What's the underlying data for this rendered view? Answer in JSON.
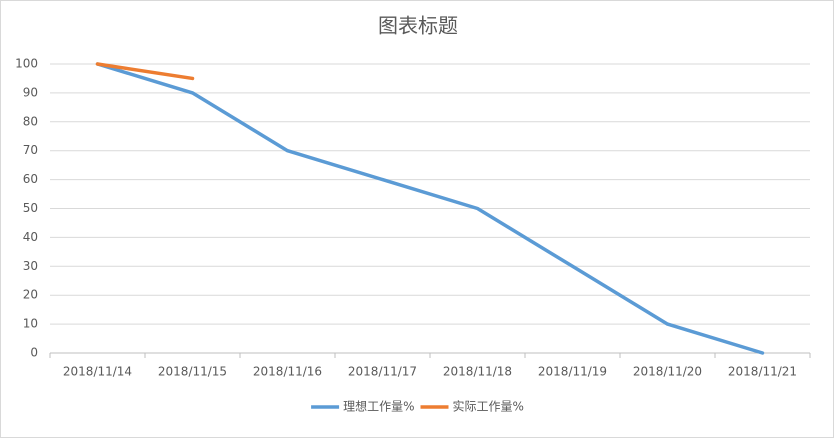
{
  "chart_data": {
    "type": "line",
    "title": "图表标题",
    "categories": [
      "2018/11/14",
      "2018/11/15",
      "2018/11/16",
      "2018/11/17",
      "2018/11/18",
      "2018/11/19",
      "2018/11/20",
      "2018/11/21"
    ],
    "series": [
      {
        "name": "理想工作量%",
        "color": "#5b9bd5",
        "values": [
          100,
          90,
          70,
          60,
          50,
          30,
          10,
          0
        ]
      },
      {
        "name": "实际工作量%",
        "color": "#ed7d31",
        "values": [
          100,
          95,
          null,
          null,
          null,
          null,
          null,
          null
        ]
      }
    ],
    "ylim": [
      0,
      100
    ],
    "yticks": [
      0,
      10,
      20,
      30,
      40,
      50,
      60,
      70,
      80,
      90,
      100
    ],
    "grid": true,
    "legend": "bottom"
  }
}
